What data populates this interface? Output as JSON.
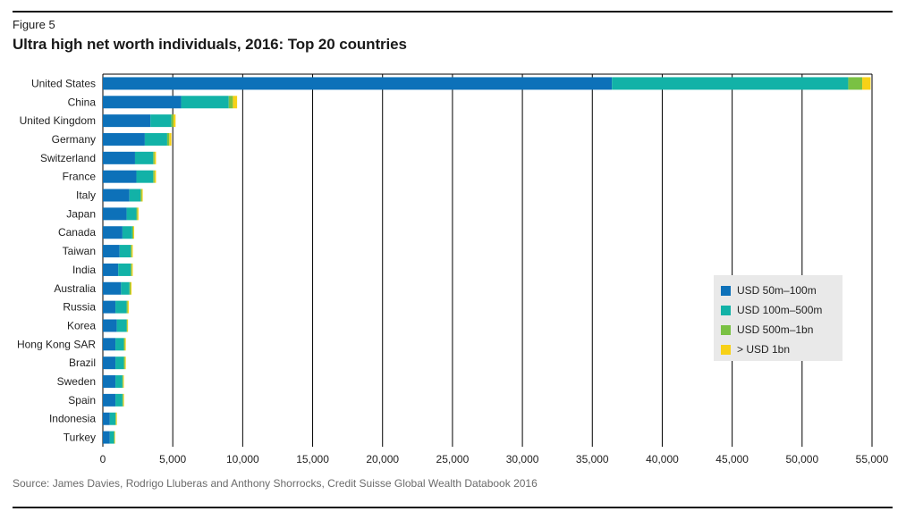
{
  "figure_label": "Figure 5",
  "source": "Source: James Davies, Rodrigo Lluberas and Anthony Shorrocks, Credit Suisse Global Wealth Databook 2016",
  "chart_data": {
    "type": "bar",
    "orientation": "horizontal",
    "stacked": true,
    "title": "Ultra high net worth individuals, 2016: Top 20 countries",
    "xlabel": "",
    "ylabel": "",
    "xlim": [
      0,
      55000
    ],
    "xticks": [
      0,
      5000,
      10000,
      15000,
      20000,
      25000,
      30000,
      35000,
      40000,
      45000,
      50000,
      55000
    ],
    "xtick_labels": [
      "0",
      "5,000",
      "10,000",
      "15,000",
      "20,000",
      "25,000",
      "30,000",
      "35,000",
      "40,000",
      "45,000",
      "50,000",
      "55,000"
    ],
    "grid": "vertical",
    "legend_position": "lower-right",
    "categories": [
      "United States",
      "China",
      "United Kingdom",
      "Germany",
      "Switzerland",
      "France",
      "Italy",
      "Japan",
      "Canada",
      "Taiwan",
      "India",
      "Australia",
      "Russia",
      "Korea",
      "Hong Kong SAR",
      "Brazil",
      "Sweden",
      "Spain",
      "Indonesia",
      "Turkey"
    ],
    "series": [
      {
        "name": "USD 50m–100m",
        "color": "#0d71b9",
        "values": [
          36400,
          5600,
          3400,
          3000,
          2300,
          2400,
          1900,
          1700,
          1400,
          1200,
          1100,
          1300,
          900,
          1000,
          900,
          900,
          900,
          900,
          500,
          500
        ]
      },
      {
        "name": "USD 100m–500m",
        "color": "#12b2a7",
        "values": [
          16900,
          3400,
          1500,
          1600,
          1300,
          1200,
          800,
          700,
          700,
          800,
          900,
          600,
          800,
          700,
          600,
          600,
          500,
          500,
          400,
          300
        ]
      },
      {
        "name": "USD 500m–1bn",
        "color": "#7ac143",
        "values": [
          1000,
          300,
          150,
          150,
          100,
          100,
          80,
          80,
          80,
          70,
          70,
          80,
          80,
          50,
          70,
          80,
          50,
          60,
          50,
          30
        ]
      },
      {
        "name": "> USD 1bn",
        "color": "#f7d117",
        "values": [
          600,
          300,
          150,
          150,
          100,
          100,
          70,
          70,
          60,
          70,
          70,
          70,
          70,
          50,
          70,
          60,
          50,
          50,
          50,
          40
        ]
      }
    ]
  }
}
